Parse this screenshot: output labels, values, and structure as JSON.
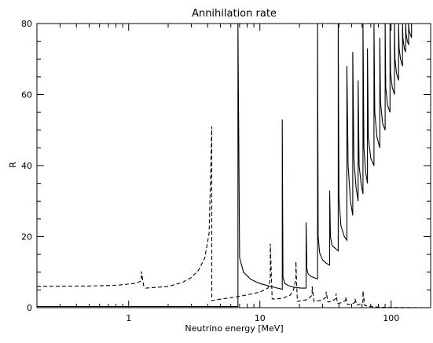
{
  "chart_data": {
    "type": "line",
    "title": "Annihilation rate",
    "xlabel": "Neutrino energy [MeV]",
    "ylabel": "R",
    "x_scale": "log",
    "xlim": [
      0.2,
      200
    ],
    "ylim": [
      0,
      80
    ],
    "x_ticks": [
      1,
      10,
      100
    ],
    "x_tick_labels": [
      "1",
      "10",
      "100"
    ],
    "y_ticks": [
      0,
      20,
      40,
      60,
      80
    ],
    "y_tick_labels": [
      "0",
      "20",
      "40",
      "60",
      "80"
    ],
    "grid": false,
    "legend": "none",
    "series": [
      {
        "style": "solid",
        "color": "#000000",
        "x": [
          0.2,
          6.8,
          6.8,
          7.0,
          7.5,
          8.5,
          10.0,
          12.0,
          14.8,
          14.8,
          15.0,
          15.5,
          16.5,
          18.0,
          20.5,
          22.5,
          22.5,
          22.8,
          23.3,
          24.5,
          26.5,
          27.5,
          27.5,
          27.8,
          28.5,
          30.0,
          32.0,
          34.0,
          34.0,
          34.5,
          35.5,
          38.0,
          39.5,
          39.5,
          40.0,
          41.5,
          44.0,
          46.0,
          46.0,
          47.0,
          49.0,
          51.0,
          51.0,
          52.0,
          54.0,
          56.0,
          56.0,
          57.0,
          59.0,
          61.0,
          61.0,
          62.0,
          64.0,
          66.0,
          66.0,
          67.0,
          70.0,
          74.0,
          74.0,
          75.0,
          78.0,
          82.0,
          82.0,
          83.0,
          86.0,
          90.0,
          90.0,
          91.0,
          94.0,
          98.0,
          98.0,
          99.0,
          102.0,
          106.0,
          106.0,
          107.0,
          110.0,
          114.0,
          114.0,
          115.0,
          118.0,
          122.0,
          122.0,
          123.0,
          126.0,
          129.0,
          129.0,
          130.0,
          133.0,
          136.0,
          136.0,
          137.0,
          140.0,
          143.0,
          143.0,
          150.0
        ],
        "y": [
          0.3,
          0.3,
          80,
          14.0,
          10.0,
          8.0,
          6.8,
          6.0,
          5.2,
          53,
          8.5,
          6.8,
          6.2,
          5.8,
          5.5,
          5.5,
          24,
          11.0,
          9.5,
          8.8,
          8.3,
          8.1,
          80,
          20.0,
          15.5,
          13.5,
          12.5,
          12.0,
          33,
          20.0,
          17.5,
          16.5,
          16.0,
          80,
          31.0,
          23.0,
          20.0,
          19.0,
          68,
          40.0,
          30.0,
          26.0,
          72,
          42.0,
          34.0,
          30.0,
          64,
          40.0,
          35.0,
          32.0,
          80,
          45.0,
          38.0,
          35.0,
          73,
          48.0,
          42.0,
          40.0,
          80,
          55.0,
          48.0,
          45.0,
          76,
          58.0,
          52.0,
          50.0,
          80,
          62.0,
          57.0,
          55.0,
          80,
          66.0,
          62.0,
          60.0,
          80,
          70.0,
          66.0,
          64.0,
          80,
          73.0,
          70.0,
          68.0,
          80,
          76.0,
          73.0,
          72.0,
          80,
          77.0,
          75.0,
          74.0,
          80,
          78.0,
          77.0,
          76.0,
          80,
          80
        ]
      },
      {
        "style": "dashed",
        "color": "#000000",
        "x": [
          0.2,
          0.5,
          0.8,
          1.1,
          1.25,
          1.25,
          1.3,
          1.35,
          1.6,
          2.0,
          2.4,
          2.6,
          3.0,
          3.4,
          3.8,
          4.1,
          4.3,
          4.3,
          4.5,
          4.8,
          5.5,
          6.5,
          8.0,
          10.0,
          11.5,
          12.0,
          12.0,
          12.4,
          13.0,
          15.0,
          17.0,
          18.0,
          18.8,
          18.8,
          19.3,
          20.5,
          23.0,
          25.0,
          25.0,
          25.8,
          27.5,
          30.0,
          32.0,
          32.0,
          33.0,
          35.0,
          38.0,
          38.0,
          39.0,
          42.0,
          45.0,
          45.0,
          46.5,
          50.0,
          53.0,
          53.0,
          55.0,
          58.0,
          61.0,
          61.0,
          63.0,
          70.0,
          85.0,
          110.0,
          150.0,
          200.0
        ],
        "y": [
          6.0,
          6.1,
          6.3,
          6.8,
          7.5,
          10.2,
          6.2,
          5.5,
          5.7,
          6.0,
          6.8,
          7.2,
          8.5,
          10.5,
          14.0,
          21.0,
          51.0,
          2.0,
          2.1,
          2.3,
          2.6,
          3.0,
          3.6,
          4.4,
          5.5,
          8.0,
          18.0,
          2.5,
          2.4,
          2.7,
          3.5,
          5.0,
          8.0,
          13.0,
          1.8,
          1.9,
          2.3,
          3.5,
          6.0,
          1.8,
          1.9,
          2.2,
          3.0,
          4.5,
          1.6,
          1.7,
          2.6,
          4.0,
          1.2,
          1.4,
          2.0,
          3.0,
          0.9,
          1.0,
          1.5,
          2.5,
          0.7,
          1.0,
          1.5,
          4.7,
          0.6,
          0.3,
          0.1,
          0.05,
          0.02,
          0.0
        ]
      }
    ]
  }
}
